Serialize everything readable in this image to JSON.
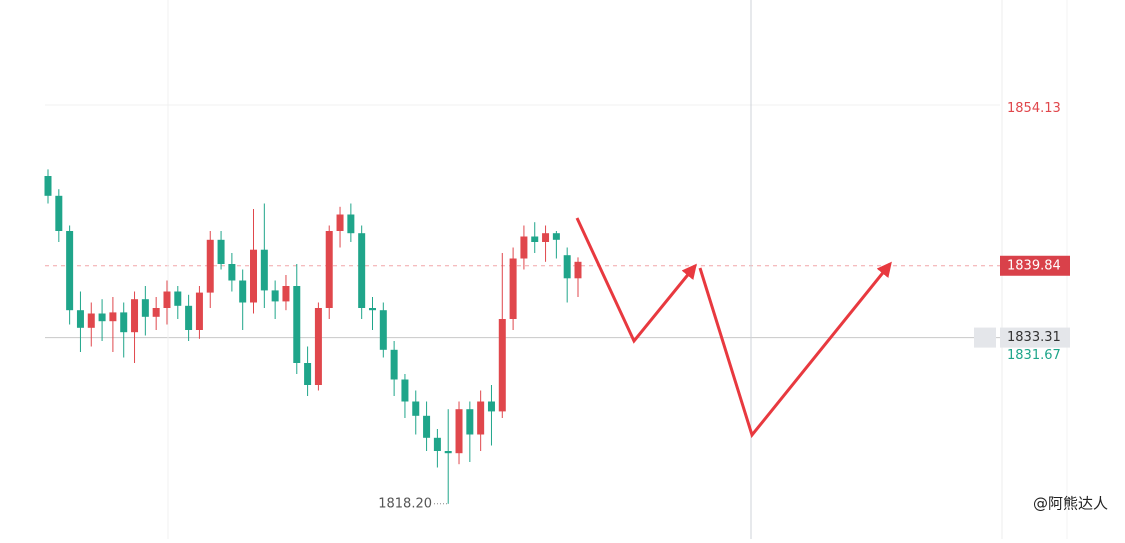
{
  "chart_data": {
    "type": "candlestick",
    "up_color": "#e0474c",
    "down_color": "#1fa58a",
    "ylim": [
      1815,
      1864
    ],
    "open": [
      1848.0,
      1846.2,
      1843.0,
      1835.8,
      1834.2,
      1835.5,
      1834.8,
      1835.6,
      1833.8,
      1836.8,
      1835.2,
      1836.0,
      1837.5,
      1836.2,
      1834.0,
      1837.4,
      1842.2,
      1840.0,
      1838.5,
      1836.5,
      1841.3,
      1837.6,
      1836.6,
      1838.0,
      1831.0,
      1829.0,
      1836.0,
      1843.0,
      1844.5,
      1842.8,
      1836.0,
      1835.8,
      1832.2,
      1829.5,
      1827.5,
      1826.2,
      1824.2,
      1823.0,
      1822.8,
      1826.8,
      1824.5,
      1827.5,
      1826.6,
      1835.0,
      1840.5,
      1842.5,
      1842.0,
      1842.8,
      1840.8,
      1838.7
    ],
    "high": [
      1848.6,
      1846.8,
      1843.5,
      1837.5,
      1836.5,
      1836.8,
      1837.0,
      1836.5,
      1837.5,
      1838.0,
      1837.0,
      1838.5,
      1838.0,
      1837.2,
      1838.0,
      1843.0,
      1843.0,
      1841.0,
      1839.5,
      1845.0,
      1845.5,
      1838.5,
      1839.0,
      1840.0,
      1832.5,
      1836.5,
      1843.5,
      1845.2,
      1845.5,
      1843.5,
      1837.0,
      1836.5,
      1833.0,
      1830.0,
      1828.5,
      1827.5,
      1825.0,
      1826.8,
      1827.5,
      1827.5,
      1828.5,
      1829.0,
      1841.0,
      1841.5,
      1843.5,
      1843.8,
      1843.5,
      1843.0,
      1841.5,
      1840.6
    ],
    "low": [
      1845.5,
      1842.0,
      1834.5,
      1832.0,
      1832.5,
      1833.0,
      1832.0,
      1831.5,
      1831.0,
      1833.5,
      1834.0,
      1834.5,
      1835.0,
      1833.0,
      1833.2,
      1836.0,
      1839.5,
      1837.5,
      1834.0,
      1835.5,
      1836.0,
      1835.0,
      1835.8,
      1830.0,
      1828.0,
      1828.5,
      1835.0,
      1841.5,
      1842.0,
      1835.0,
      1834.0,
      1831.5,
      1828.0,
      1826.0,
      1824.5,
      1823.0,
      1821.5,
      1818.2,
      1821.8,
      1822.0,
      1823.0,
      1823.5,
      1826.0,
      1834.0,
      1839.5,
      1841.0,
      1840.2,
      1840.5,
      1836.5,
      1837.0
    ],
    "close": [
      1846.2,
      1843.0,
      1835.8,
      1834.2,
      1835.5,
      1834.8,
      1835.6,
      1833.8,
      1836.8,
      1835.2,
      1836.0,
      1837.5,
      1836.2,
      1834.0,
      1837.4,
      1842.2,
      1840.0,
      1838.5,
      1836.5,
      1841.3,
      1837.6,
      1836.6,
      1838.0,
      1831.0,
      1829.0,
      1836.0,
      1843.0,
      1844.5,
      1842.8,
      1836.0,
      1835.8,
      1832.2,
      1829.5,
      1827.5,
      1826.2,
      1824.2,
      1823.0,
      1822.8,
      1826.8,
      1824.5,
      1827.5,
      1826.6,
      1835.0,
      1840.5,
      1842.5,
      1842.0,
      1842.8,
      1842.2,
      1838.7,
      1840.2
    ],
    "price_labels": [
      {
        "value": 1854.13,
        "color": "#e0474c"
      },
      {
        "value": 1839.84,
        "color": "#ffffff",
        "box": "#d9414a",
        "line": "dashed",
        "line_color": "#f2a5a8"
      },
      {
        "value": 1833.31,
        "color": "#333333",
        "box": "#e4e6ea",
        "line": "solid",
        "line_color": "#c8c8c8"
      },
      {
        "value": 1831.67,
        "color": "#1fa58a"
      }
    ],
    "low_label": {
      "value": 1818.2,
      "label": "1818.20"
    },
    "watermark": "@阿熊达人"
  }
}
